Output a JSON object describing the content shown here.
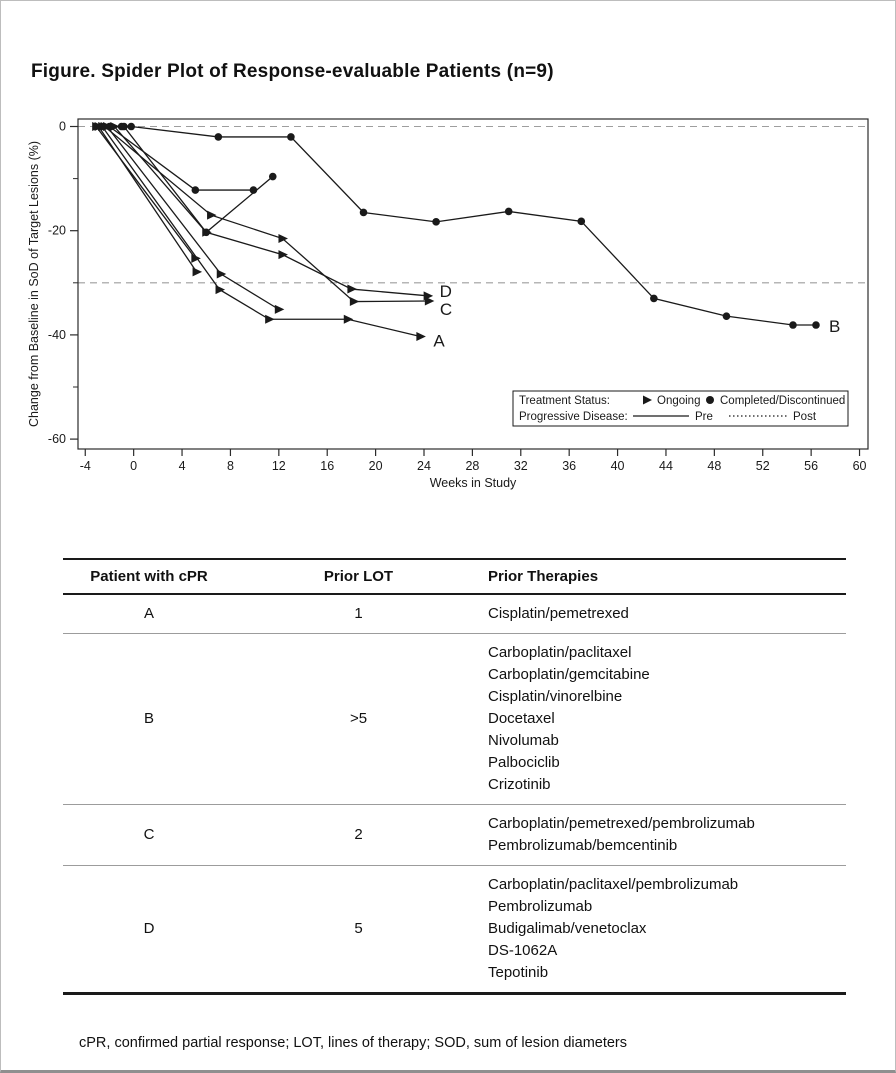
{
  "figure_title": "Figure. Spider Plot of Response-evaluable Patients (n=9)",
  "footnote": "cPR, confirmed partial response; LOT, lines of therapy; SOD, sum of lesion diameters",
  "chart_data": {
    "type": "line",
    "title": "Spider plot of change from baseline in sum of diameters of target lesions",
    "xlabel": "Weeks in Study",
    "ylabel": "Change from Baseline in SoD of Target Lesions (%)",
    "xlim": [
      -4.6,
      60.7
    ],
    "ylim": [
      -61.9,
      1.44
    ],
    "x_ticks": [
      -4,
      0,
      4,
      8,
      12,
      16,
      20,
      24,
      28,
      32,
      36,
      40,
      44,
      48,
      52,
      56,
      60
    ],
    "y_ticks": [
      0,
      -20,
      -40,
      -60
    ],
    "y_minor_ticks": [
      -10,
      -30,
      -50
    ],
    "reference_lines": [
      0,
      -30
    ],
    "grid": false,
    "legend_position": "inside-bottom-right",
    "legend": {
      "row1_label": "Treatment Status:",
      "ongoing_label": "Ongoing",
      "completed_label": "Completed/Discontinued",
      "row2_label": "Progressive Disease:",
      "pre_label": "Pre",
      "post_label": "Post"
    },
    "series": [
      {
        "name": "A",
        "label": "A",
        "status": "ongoing",
        "points": [
          [
            -2.6,
            0
          ],
          [
            7.1,
            -31.3
          ],
          [
            11.2,
            -37
          ],
          [
            17.7,
            -37
          ],
          [
            23.7,
            -40.3
          ]
        ]
      },
      {
        "name": "B",
        "label": "B",
        "status": "completed",
        "points": [
          [
            -1,
            0
          ],
          [
            -0.2,
            0
          ],
          [
            7,
            -2
          ],
          [
            13,
            -2
          ],
          [
            19,
            -16.5
          ],
          [
            25,
            -18.3
          ],
          [
            31,
            -16.3
          ],
          [
            37,
            -18.2
          ],
          [
            43,
            -33
          ],
          [
            49,
            -36.4
          ],
          [
            54.5,
            -38.1
          ],
          [
            56.4,
            -38.1
          ]
        ]
      },
      {
        "name": "C",
        "label": "C",
        "status": "ongoing",
        "points": [
          [
            -2.4,
            0
          ],
          [
            6.4,
            -17
          ],
          [
            12.3,
            -21.5
          ],
          [
            18.2,
            -33.6
          ],
          [
            24.4,
            -33.5
          ]
        ]
      },
      {
        "name": "D",
        "label": "D",
        "status": "ongoing",
        "points": [
          [
            -1.6,
            0
          ],
          [
            6,
            -20.3
          ],
          [
            12.3,
            -24.6
          ],
          [
            18,
            -31.2
          ],
          [
            24.3,
            -32.5
          ]
        ]
      },
      {
        "name": "patient-5",
        "label": "",
        "status": "completed",
        "points": [
          [
            -2,
            0
          ],
          [
            5.1,
            -12.2
          ],
          [
            9.9,
            -12.2
          ]
        ]
      },
      {
        "name": "patient-6",
        "label": "",
        "status": "completed",
        "points": [
          [
            -0.8,
            0
          ],
          [
            6,
            -20.3
          ],
          [
            11.5,
            -9.6
          ]
        ]
      },
      {
        "name": "patient-7",
        "label": "",
        "status": "ongoing",
        "points": [
          [
            -3.1,
            0
          ],
          [
            5.1,
            -25.3
          ]
        ]
      },
      {
        "name": "patient-8",
        "label": "",
        "status": "ongoing",
        "points": [
          [
            -2.9,
            0
          ],
          [
            5.2,
            -27.9
          ]
        ]
      },
      {
        "name": "patient-9",
        "label": "",
        "status": "ongoing",
        "points": [
          [
            -2.2,
            0
          ],
          [
            7.2,
            -28.3
          ],
          [
            12,
            -35.1
          ]
        ]
      }
    ]
  },
  "table": {
    "headers": [
      "Patient with cPR",
      "Prior LOT",
      "Prior Therapies"
    ],
    "rows": [
      {
        "patient": "A",
        "prior_lot": "1",
        "therapies": [
          "Cisplatin/pemetrexed"
        ]
      },
      {
        "patient": "B",
        "prior_lot": ">5",
        "therapies": [
          "Carboplatin/paclitaxel",
          "Carboplatin/gemcitabine",
          "Cisplatin/vinorelbine",
          "Docetaxel",
          "Nivolumab",
          "Palbociclib",
          "Crizotinib"
        ]
      },
      {
        "patient": "C",
        "prior_lot": "2",
        "therapies": [
          "Carboplatin/pemetrexed/pembrolizumab",
          "Pembrolizumab/bemcentinib"
        ]
      },
      {
        "patient": "D",
        "prior_lot": "5",
        "therapies": [
          "Carboplatin/paclitaxel/pembrolizumab",
          "Pembrolizumab",
          "Budigalimab/venetoclax",
          "DS-1062A",
          "Tepotinib"
        ]
      }
    ]
  },
  "colors": {
    "line": "#1a1a1a",
    "marker": "#1a1a1a",
    "reference_line": "#9e9e9e",
    "frame": "#2b2b2b",
    "text": "#111111",
    "background": "#ffffff"
  }
}
